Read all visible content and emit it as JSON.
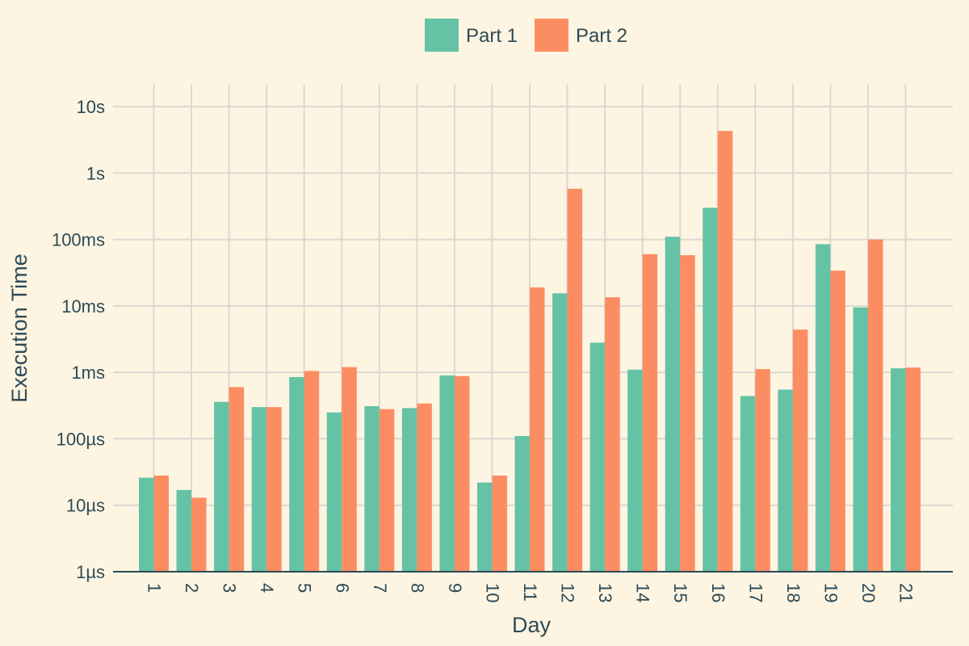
{
  "chart_data": {
    "type": "bar",
    "categories": [
      "1",
      "2",
      "3",
      "4",
      "5",
      "6",
      "7",
      "8",
      "9",
      "10",
      "11",
      "12",
      "13",
      "14",
      "15",
      "16",
      "17",
      "18",
      "19",
      "20",
      "21"
    ],
    "series": [
      {
        "name": "Part 1",
        "color": "#66c2a5",
        "values": [
          2.6e-05,
          1.7e-05,
          0.00036,
          0.0003,
          0.00085,
          0.00025,
          0.00031,
          0.00029,
          0.0009,
          2.2e-05,
          0.00011,
          0.0155,
          0.0028,
          0.0011,
          0.11,
          0.3,
          0.00044,
          0.00055,
          0.085,
          0.0095,
          0.00115
        ]
      },
      {
        "name": "Part 2",
        "color": "#fc8d62",
        "values": [
          2.8e-05,
          1.3e-05,
          0.0006,
          0.0003,
          0.00105,
          0.0012,
          0.00028,
          0.00034,
          0.00088,
          2.8e-05,
          0.019,
          0.58,
          0.0135,
          0.06,
          0.058,
          4.3,
          0.00112,
          0.0044,
          0.034,
          0.1,
          0.00118
        ]
      }
    ],
    "xlabel": "Day",
    "ylabel": "Execution Time",
    "yscale": "log",
    "ylim": [
      1e-06,
      20
    ],
    "yticks": [
      {
        "value": 1e-06,
        "label": "1µs"
      },
      {
        "value": 1e-05,
        "label": "10µs"
      },
      {
        "value": 0.0001,
        "label": "100µs"
      },
      {
        "value": 0.001,
        "label": "1ms"
      },
      {
        "value": 0.01,
        "label": "10ms"
      },
      {
        "value": 0.1,
        "label": "100ms"
      },
      {
        "value": 1,
        "label": "1s"
      },
      {
        "value": 10,
        "label": "10s"
      }
    ],
    "grid": true,
    "legend_position": "top-center",
    "background_color": "#fdf5e2",
    "grid_color": "#dcd8d2",
    "text_color": "#2d4a57"
  }
}
